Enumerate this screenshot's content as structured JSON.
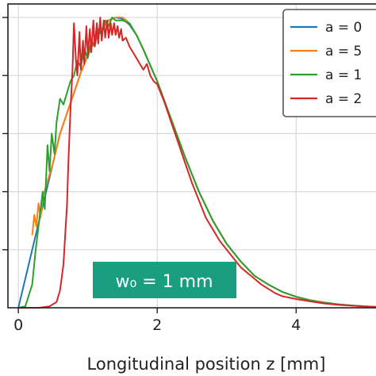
{
  "chart_data": {
    "type": "line",
    "title": "",
    "xlabel": "Longitudinal position z [mm]",
    "ylabel": "",
    "xlim": [
      -0.15,
      5.15
    ],
    "ylim": [
      0,
      1.0
    ],
    "xticks": [
      0,
      2,
      4
    ],
    "x_tick_labels": [
      "0",
      "2",
      "4"
    ],
    "yticks": [
      0.2,
      0.4,
      0.6,
      0.8,
      1.0
    ],
    "grid": true,
    "legend_position": "top-right",
    "annotation": {
      "text": "w₀ = 1 mm",
      "color": "#1a9e80"
    },
    "series": [
      {
        "name": "a = 0",
        "color": "#1f77b4",
        "x": [
          0.0,
          0.1,
          0.2,
          0.3,
          0.4,
          0.5,
          0.6,
          0.7,
          0.8,
          0.9,
          1.0,
          1.1,
          1.2,
          1.3,
          1.4,
          1.5,
          1.6,
          1.7,
          1.8,
          2.0,
          2.2,
          2.4,
          2.6,
          2.8,
          3.0,
          3.2,
          3.4,
          3.6,
          3.8,
          4.0,
          4.2,
          4.4,
          4.6,
          4.8,
          5.0,
          5.15
        ],
        "y": [
          0.0,
          0.1,
          0.2,
          0.3,
          0.4,
          0.5,
          0.6,
          0.67,
          0.74,
          0.81,
          0.87,
          0.92,
          0.96,
          0.99,
          1.0,
          0.995,
          0.975,
          0.94,
          0.89,
          0.78,
          0.65,
          0.52,
          0.4,
          0.3,
          0.22,
          0.16,
          0.11,
          0.08,
          0.055,
          0.038,
          0.026,
          0.018,
          0.012,
          0.008,
          0.005,
          0.003
        ]
      },
      {
        "name": "a = 5",
        "color": "#ff7f0e",
        "x": [
          0.2,
          0.23,
          0.26,
          0.29,
          0.32,
          0.35,
          0.4,
          0.5,
          0.6,
          0.7,
          0.8,
          0.9,
          1.0,
          1.1,
          1.2,
          1.3,
          1.4,
          1.5,
          1.6,
          1.7,
          1.8,
          2.0,
          2.2,
          2.4,
          2.6,
          2.8,
          3.0,
          3.2,
          3.4,
          3.6,
          3.8,
          4.0,
          4.2,
          4.4,
          4.6,
          4.8,
          5.0,
          5.15
        ],
        "y": [
          0.25,
          0.32,
          0.28,
          0.36,
          0.31,
          0.38,
          0.42,
          0.5,
          0.6,
          0.67,
          0.74,
          0.81,
          0.87,
          0.92,
          0.96,
          0.99,
          1.0,
          1.0,
          0.98,
          0.94,
          0.89,
          0.78,
          0.65,
          0.52,
          0.4,
          0.3,
          0.22,
          0.16,
          0.11,
          0.08,
          0.055,
          0.038,
          0.026,
          0.018,
          0.012,
          0.008,
          0.005,
          0.003
        ]
      },
      {
        "name": "a = 1",
        "color": "#2ca02c",
        "x": [
          0.0,
          0.1,
          0.2,
          0.25,
          0.3,
          0.35,
          0.38,
          0.42,
          0.45,
          0.48,
          0.52,
          0.55,
          0.6,
          0.65,
          0.7,
          0.75,
          0.8,
          0.85,
          0.9,
          0.95,
          1.0,
          1.05,
          1.1,
          1.15,
          1.2,
          1.25,
          1.3,
          1.35,
          1.4,
          1.5,
          1.6,
          1.7,
          1.8,
          2.0,
          2.2,
          2.4,
          2.6,
          2.8,
          3.0,
          3.2,
          3.4,
          3.6,
          3.8,
          4.0,
          4.2,
          4.4,
          4.6,
          4.8,
          5.0,
          5.15
        ],
        "y": [
          0.0,
          0.005,
          0.08,
          0.2,
          0.3,
          0.4,
          0.34,
          0.56,
          0.47,
          0.6,
          0.53,
          0.64,
          0.72,
          0.7,
          0.74,
          0.78,
          0.8,
          0.85,
          0.83,
          0.89,
          0.86,
          0.92,
          0.9,
          0.96,
          0.94,
          0.99,
          0.97,
          1.0,
          0.99,
          0.99,
          0.98,
          0.94,
          0.89,
          0.78,
          0.65,
          0.52,
          0.4,
          0.3,
          0.22,
          0.16,
          0.11,
          0.08,
          0.055,
          0.038,
          0.026,
          0.018,
          0.012,
          0.008,
          0.005,
          0.003
        ]
      },
      {
        "name": "a = 2",
        "color": "#d62728",
        "x": [
          0.0,
          0.3,
          0.45,
          0.55,
          0.6,
          0.65,
          0.7,
          0.72,
          0.75,
          0.78,
          0.8,
          0.83,
          0.85,
          0.88,
          0.9,
          0.93,
          0.95,
          0.98,
          1.0,
          1.03,
          1.05,
          1.08,
          1.1,
          1.13,
          1.15,
          1.18,
          1.2,
          1.23,
          1.25,
          1.28,
          1.3,
          1.33,
          1.35,
          1.38,
          1.4,
          1.43,
          1.45,
          1.48,
          1.5,
          1.55,
          1.6,
          1.65,
          1.7,
          1.75,
          1.8,
          1.85,
          1.9,
          1.95,
          2.0,
          2.1,
          2.2,
          2.3,
          2.4,
          2.5,
          2.6,
          2.7,
          2.8,
          2.9,
          3.0,
          3.1,
          3.2,
          3.3,
          3.4,
          3.5,
          3.6,
          3.7,
          3.8,
          4.0,
          4.2,
          4.4,
          4.6,
          4.8,
          5.0,
          5.15
        ],
        "y": [
          0.0,
          0.0,
          0.005,
          0.02,
          0.06,
          0.15,
          0.35,
          0.5,
          0.68,
          0.82,
          0.98,
          0.85,
          0.8,
          0.95,
          0.82,
          0.92,
          0.84,
          0.97,
          0.87,
          0.96,
          0.88,
          0.99,
          0.9,
          0.98,
          0.91,
          1.0,
          0.92,
          0.99,
          0.93,
          0.99,
          0.93,
          0.98,
          0.94,
          0.98,
          0.94,
          0.97,
          0.93,
          0.96,
          0.92,
          0.93,
          0.9,
          0.88,
          0.86,
          0.84,
          0.82,
          0.84,
          0.8,
          0.78,
          0.77,
          0.71,
          0.64,
          0.57,
          0.5,
          0.43,
          0.37,
          0.31,
          0.27,
          0.23,
          0.2,
          0.17,
          0.14,
          0.12,
          0.1,
          0.08,
          0.065,
          0.05,
          0.04,
          0.03,
          0.022,
          0.015,
          0.01,
          0.007,
          0.004,
          0.003
        ]
      }
    ]
  }
}
